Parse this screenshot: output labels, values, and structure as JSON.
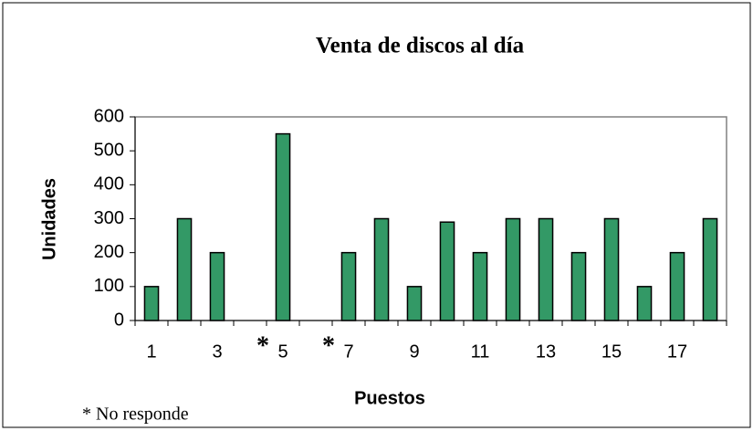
{
  "chart_data": {
    "type": "bar",
    "title": "Venta de discos al día",
    "ylabel": "Unidades",
    "xlabel": "Puestos",
    "categories": [
      "1",
      null,
      "3",
      "*",
      "5",
      "*",
      "7",
      null,
      "9",
      null,
      "11",
      null,
      "13",
      null,
      "15",
      null,
      "17",
      null
    ],
    "values": [
      100,
      300,
      200,
      null,
      550,
      null,
      200,
      300,
      100,
      290,
      200,
      300,
      300,
      200,
      300,
      100,
      200,
      300
    ],
    "color": "#339966",
    "ylim": [
      0,
      600
    ],
    "yticks": [
      0,
      100,
      200,
      300,
      400,
      500,
      600
    ],
    "footnote": "* No responde"
  }
}
